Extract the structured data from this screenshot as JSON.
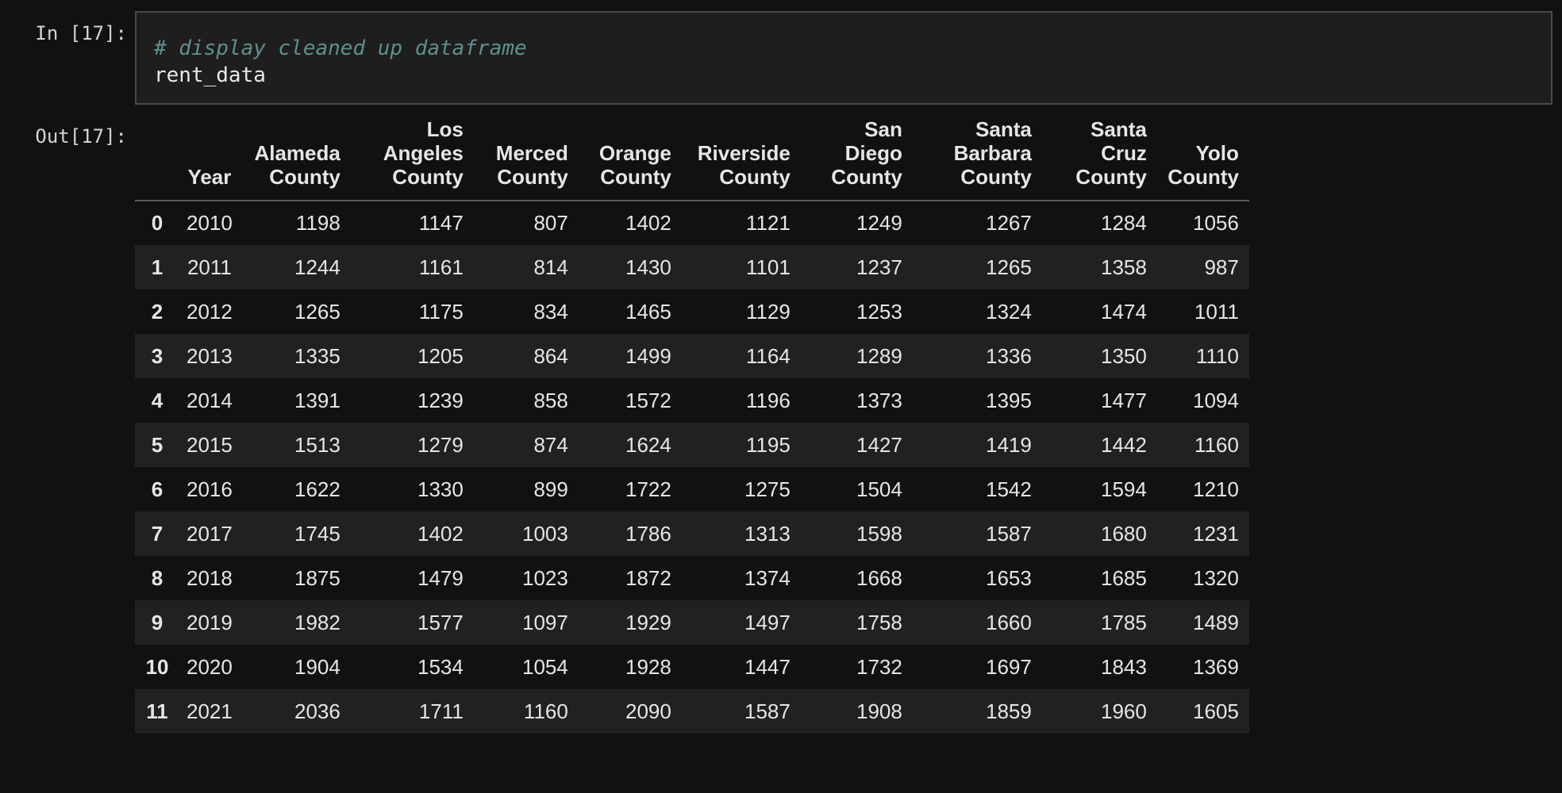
{
  "input_cell": {
    "prompt": "In [17]:",
    "comment": "# display cleaned up dataframe",
    "code": "rent_data"
  },
  "output_cell": {
    "prompt": "Out[17]:",
    "columns": [
      "Year",
      "Alameda County",
      "Los Angeles County",
      "Merced County",
      "Orange County",
      "Riverside County",
      "San Diego County",
      "Santa Barbara County",
      "Santa Cruz County",
      "Yolo County"
    ],
    "rows": [
      {
        "index": "0",
        "values": [
          "2010",
          "1198",
          "1147",
          "807",
          "1402",
          "1121",
          "1249",
          "1267",
          "1284",
          "1056"
        ]
      },
      {
        "index": "1",
        "values": [
          "2011",
          "1244",
          "1161",
          "814",
          "1430",
          "1101",
          "1237",
          "1265",
          "1358",
          "987"
        ]
      },
      {
        "index": "2",
        "values": [
          "2012",
          "1265",
          "1175",
          "834",
          "1465",
          "1129",
          "1253",
          "1324",
          "1474",
          "1011"
        ]
      },
      {
        "index": "3",
        "values": [
          "2013",
          "1335",
          "1205",
          "864",
          "1499",
          "1164",
          "1289",
          "1336",
          "1350",
          "1110"
        ]
      },
      {
        "index": "4",
        "values": [
          "2014",
          "1391",
          "1239",
          "858",
          "1572",
          "1196",
          "1373",
          "1395",
          "1477",
          "1094"
        ]
      },
      {
        "index": "5",
        "values": [
          "2015",
          "1513",
          "1279",
          "874",
          "1624",
          "1195",
          "1427",
          "1419",
          "1442",
          "1160"
        ]
      },
      {
        "index": "6",
        "values": [
          "2016",
          "1622",
          "1330",
          "899",
          "1722",
          "1275",
          "1504",
          "1542",
          "1594",
          "1210"
        ]
      },
      {
        "index": "7",
        "values": [
          "2017",
          "1745",
          "1402",
          "1003",
          "1786",
          "1313",
          "1598",
          "1587",
          "1680",
          "1231"
        ]
      },
      {
        "index": "8",
        "values": [
          "2018",
          "1875",
          "1479",
          "1023",
          "1872",
          "1374",
          "1668",
          "1653",
          "1685",
          "1320"
        ]
      },
      {
        "index": "9",
        "values": [
          "2019",
          "1982",
          "1577",
          "1097",
          "1929",
          "1497",
          "1758",
          "1660",
          "1785",
          "1489"
        ]
      },
      {
        "index": "10",
        "values": [
          "2020",
          "1904",
          "1534",
          "1054",
          "1928",
          "1447",
          "1732",
          "1697",
          "1843",
          "1369"
        ]
      },
      {
        "index": "11",
        "values": [
          "2021",
          "2036",
          "1711",
          "1160",
          "2090",
          "1587",
          "1908",
          "1859",
          "1960",
          "1605"
        ]
      }
    ]
  },
  "colors": {
    "background": "#111111",
    "input_background": "#1e1e1e",
    "input_border": "#4a4a4a",
    "comment": "#5f8f8f",
    "row_stripe": "#212121",
    "text": "#e6e6e6"
  }
}
